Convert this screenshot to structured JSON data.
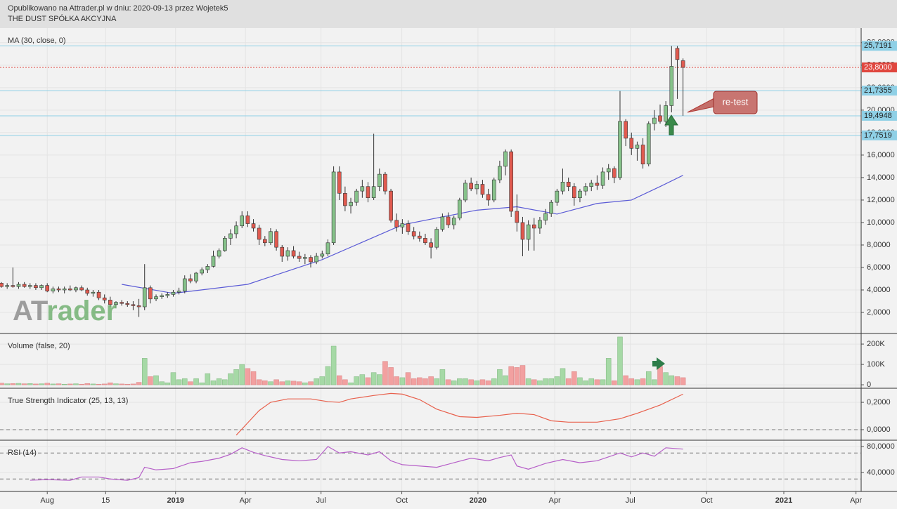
{
  "header": {
    "published": "Opublikowano na Attrader.pl w dniu: 2020-09-13 przez Wojetek5",
    "company": "THE DUST SPÓŁKA AKCYJNA"
  },
  "logo": [
    "AT",
    "rader"
  ],
  "chart_data": [
    {
      "type": "candlestick",
      "title": "MA (30, close, 0)",
      "up_color": "#86c28a",
      "down_color": "#e05a4f",
      "ohlc": [
        [
          4.6,
          4.7,
          4.2,
          4.3
        ],
        [
          4.3,
          4.6,
          4.1,
          4.4
        ],
        [
          4.4,
          6.0,
          4.2,
          4.3
        ],
        [
          4.3,
          4.7,
          4.1,
          4.5
        ],
        [
          4.5,
          4.7,
          4.2,
          4.3
        ],
        [
          4.3,
          4.6,
          4.1,
          4.4
        ],
        [
          4.4,
          4.6,
          4.0,
          4.2
        ],
        [
          4.2,
          4.5,
          4.0,
          4.4
        ],
        [
          4.4,
          4.6,
          3.8,
          3.9
        ],
        [
          3.9,
          4.3,
          3.7,
          4.1
        ],
        [
          4.1,
          4.3,
          3.8,
          4.0
        ],
        [
          4.0,
          4.3,
          3.7,
          4.1
        ],
        [
          4.1,
          4.4,
          3.9,
          4.0
        ],
        [
          4.0,
          4.3,
          3.8,
          4.2
        ],
        [
          4.2,
          4.4,
          3.9,
          4.0
        ],
        [
          4.0,
          4.2,
          3.5,
          3.7
        ],
        [
          3.7,
          4.0,
          3.4,
          3.8
        ],
        [
          3.8,
          4.0,
          3.1,
          3.3
        ],
        [
          3.3,
          3.6,
          2.8,
          3.1
        ],
        [
          3.1,
          3.4,
          2.5,
          2.7
        ],
        [
          2.7,
          3.0,
          2.4,
          2.9
        ],
        [
          2.9,
          3.1,
          2.6,
          2.8
        ],
        [
          2.8,
          3.0,
          2.5,
          2.7
        ],
        [
          2.7,
          3.0,
          2.2,
          2.6
        ],
        [
          2.6,
          3.2,
          1.6,
          2.5
        ],
        [
          2.5,
          6.3,
          2.2,
          4.2
        ],
        [
          4.2,
          4.4,
          2.8,
          3.2
        ],
        [
          3.2,
          3.6,
          3.0,
          3.4
        ],
        [
          3.4,
          3.7,
          3.2,
          3.5
        ],
        [
          3.5,
          3.8,
          3.3,
          3.6
        ],
        [
          3.6,
          4.0,
          3.4,
          3.8
        ],
        [
          3.8,
          4.2,
          3.6,
          3.9
        ],
        [
          3.9,
          5.3,
          3.7,
          5.0
        ],
        [
          5.0,
          5.4,
          4.6,
          4.8
        ],
        [
          4.8,
          5.6,
          4.6,
          5.5
        ],
        [
          5.5,
          6.0,
          5.3,
          5.8
        ],
        [
          5.8,
          6.3,
          5.5,
          6.1
        ],
        [
          6.1,
          7.5,
          6.0,
          7.0
        ],
        [
          7.0,
          7.7,
          6.8,
          7.5
        ],
        [
          7.5,
          8.8,
          7.4,
          8.6
        ],
        [
          8.6,
          9.4,
          8.0,
          9.0
        ],
        [
          9.0,
          10.1,
          8.6,
          9.7
        ],
        [
          9.7,
          11.0,
          9.5,
          10.6
        ],
        [
          10.6,
          11.0,
          9.6,
          9.9
        ],
        [
          9.9,
          10.3,
          9.2,
          9.5
        ],
        [
          9.5,
          9.8,
          8.0,
          8.5
        ],
        [
          8.5,
          8.8,
          7.9,
          8.2
        ],
        [
          8.2,
          9.5,
          8.0,
          9.2
        ],
        [
          9.2,
          9.4,
          7.5,
          7.8
        ],
        [
          7.8,
          8.0,
          6.5,
          7.0
        ],
        [
          7.0,
          7.8,
          6.6,
          7.5
        ],
        [
          7.5,
          7.9,
          6.8,
          7.0
        ],
        [
          7.0,
          7.4,
          6.5,
          6.8
        ],
        [
          6.8,
          7.2,
          6.3,
          6.9
        ],
        [
          6.9,
          7.1,
          6.0,
          6.5
        ],
        [
          6.5,
          7.3,
          6.3,
          7.0
        ],
        [
          7.0,
          7.5,
          6.8,
          7.2
        ],
        [
          7.2,
          8.5,
          7.0,
          8.2
        ],
        [
          8.2,
          15.0,
          8.0,
          14.5
        ],
        [
          14.5,
          15.0,
          12.0,
          12.6
        ],
        [
          12.6,
          13.2,
          11.0,
          11.5
        ],
        [
          11.5,
          12.2,
          10.8,
          11.8
        ],
        [
          11.8,
          13.0,
          11.5,
          12.8
        ],
        [
          12.8,
          13.8,
          12.2,
          13.2
        ],
        [
          13.2,
          13.6,
          11.8,
          12.2
        ],
        [
          12.2,
          17.9,
          12.0,
          13.2
        ],
        [
          13.2,
          14.8,
          12.8,
          14.3
        ],
        [
          14.3,
          14.5,
          12.5,
          12.8
        ],
        [
          12.8,
          13.0,
          10.0,
          10.2
        ],
        [
          10.2,
          10.8,
          9.2,
          9.6
        ],
        [
          9.6,
          10.3,
          9.0,
          9.9
        ],
        [
          9.9,
          10.2,
          8.9,
          9.2
        ],
        [
          9.2,
          9.6,
          8.5,
          8.8
        ],
        [
          8.8,
          9.2,
          8.3,
          8.6
        ],
        [
          8.6,
          9.0,
          8.0,
          8.2
        ],
        [
          8.2,
          8.6,
          6.8,
          7.8
        ],
        [
          7.8,
          9.6,
          7.6,
          9.4
        ],
        [
          9.4,
          10.8,
          9.2,
          10.5
        ],
        [
          10.5,
          10.9,
          9.5,
          9.8
        ],
        [
          9.8,
          10.6,
          9.4,
          10.4
        ],
        [
          10.4,
          12.2,
          10.2,
          12.0
        ],
        [
          12.0,
          13.8,
          11.8,
          13.5
        ],
        [
          13.5,
          14.0,
          12.8,
          13.0
        ],
        [
          13.0,
          13.7,
          12.5,
          13.4
        ],
        [
          13.4,
          13.8,
          12.2,
          12.5
        ],
        [
          12.5,
          13.0,
          11.5,
          12.0
        ],
        [
          12.0,
          14.0,
          11.8,
          13.8
        ],
        [
          13.8,
          15.5,
          13.5,
          15.0
        ],
        [
          15.0,
          16.5,
          14.2,
          16.3
        ],
        [
          16.3,
          16.5,
          10.5,
          11.0
        ],
        [
          11.0,
          12.5,
          9.2,
          10.0
        ],
        [
          10.0,
          10.5,
          7.0,
          8.5
        ],
        [
          8.5,
          10.2,
          7.5,
          9.8
        ],
        [
          9.8,
          10.4,
          7.5,
          9.5
        ],
        [
          9.5,
          10.5,
          9.0,
          10.2
        ],
        [
          10.2,
          11.2,
          9.8,
          10.8
        ],
        [
          10.8,
          12.0,
          10.5,
          11.8
        ],
        [
          11.8,
          13.0,
          11.5,
          12.8
        ],
        [
          12.8,
          14.8,
          12.5,
          13.6
        ],
        [
          13.6,
          14.0,
          12.8,
          13.2
        ],
        [
          13.2,
          13.5,
          11.5,
          12.2
        ],
        [
          12.2,
          13.0,
          11.8,
          12.8
        ],
        [
          12.8,
          13.5,
          12.4,
          13.2
        ],
        [
          13.2,
          13.8,
          12.8,
          13.5
        ],
        [
          13.5,
          14.2,
          12.9,
          13.3
        ],
        [
          13.3,
          14.9,
          13.0,
          14.5
        ],
        [
          14.5,
          15.2,
          13.8,
          14.8
        ],
        [
          14.8,
          15.0,
          13.5,
          14.0
        ],
        [
          14.0,
          21.7,
          13.8,
          19.0
        ],
        [
          19.0,
          19.2,
          16.8,
          17.5
        ],
        [
          17.5,
          18.0,
          16.0,
          16.6
        ],
        [
          16.6,
          17.2,
          15.5,
          16.9
        ],
        [
          16.9,
          17.5,
          14.8,
          15.2
        ],
        [
          15.2,
          19.0,
          15.0,
          18.8
        ],
        [
          18.8,
          20.0,
          18.2,
          19.3
        ],
        [
          19.5,
          20.5,
          18.8,
          19.0
        ],
        [
          19.0,
          20.8,
          18.5,
          20.4
        ],
        [
          20.4,
          25.7,
          19.8,
          23.9
        ],
        [
          25.5,
          25.7,
          21.0,
          24.5
        ],
        [
          24.4,
          24.6,
          19.5,
          23.8
        ]
      ],
      "ma": {
        "color": "#5b5bd6",
        "x": [
          21,
          30,
          43,
          56,
          70,
          83,
          90,
          97,
          104,
          110,
          115,
          119
        ],
        "values": [
          4.5,
          3.7,
          4.5,
          6.7,
          9.8,
          11.1,
          11.4,
          10.75,
          11.7,
          12.0,
          13.2,
          14.2
        ]
      },
      "levels": [
        {
          "value": 25.7191,
          "label": "25,7191",
          "color": "#8fd0e6",
          "text_color": "#222"
        },
        {
          "value": 23.8,
          "label": "23,8000",
          "color": "#e0463e",
          "text_color": "#ffffff",
          "dotted": true
        },
        {
          "value": 21.7355,
          "label": "21,7355",
          "color": "#8fd0e6",
          "text_color": "#222"
        },
        {
          "value": 19.4948,
          "label": "19,4948",
          "color": "#8fd0e6",
          "text_color": "#222"
        },
        {
          "value": 17.7519,
          "label": "17,7519",
          "color": "#8fd0e6",
          "text_color": "#222"
        }
      ],
      "annotation": "re-test",
      "ylim": [
        0.19,
        27.3
      ],
      "yticks": [
        {
          "value": 2,
          "label": "2,0000"
        },
        {
          "value": 4,
          "label": "4,0000"
        },
        {
          "value": 6,
          "label": "6,0000"
        },
        {
          "value": 8,
          "label": "8,0000"
        },
        {
          "value": 10,
          "label": "10,0000"
        },
        {
          "value": 12,
          "label": "12,0000"
        },
        {
          "value": 14,
          "label": "14,0000"
        },
        {
          "value": 16,
          "label": "16,0000"
        },
        {
          "value": 18,
          "label": "18,0000"
        },
        {
          "value": 20,
          "label": "20,0000"
        },
        {
          "value": 22,
          "label": "22,0000"
        },
        {
          "value": 24,
          "label": "24,0000"
        },
        {
          "value": 26,
          "label": "26,0000"
        }
      ]
    },
    {
      "type": "bar",
      "title": "Volume (false, 20)",
      "up_color": "#a6d9a6",
      "down_color": "#f2a0a0",
      "values": [
        8000,
        5000,
        6000,
        7000,
        5000,
        6000,
        4000,
        5000,
        8000,
        4000,
        5000,
        3000,
        4000,
        5000,
        3000,
        6000,
        4000,
        3000,
        4000,
        10000,
        5000,
        4000,
        3000,
        4000,
        12000,
        130000,
        40000,
        45000,
        15000,
        10000,
        60000,
        25000,
        30000,
        15000,
        30000,
        10000,
        55000,
        20000,
        30000,
        25000,
        55000,
        75000,
        100000,
        80000,
        65000,
        25000,
        20000,
        15000,
        25000,
        15000,
        20000,
        18000,
        15000,
        10000,
        15000,
        30000,
        40000,
        90000,
        190000,
        45000,
        25000,
        10000,
        40000,
        50000,
        35000,
        60000,
        50000,
        115000,
        85000,
        40000,
        35000,
        60000,
        30000,
        35000,
        30000,
        40000,
        30000,
        75000,
        25000,
        20000,
        30000,
        30000,
        25000,
        20000,
        25000,
        20000,
        30000,
        75000,
        45000,
        90000,
        85000,
        95000,
        30000,
        25000,
        20000,
        30000,
        30000,
        40000,
        80000,
        30000,
        65000,
        35000,
        20000,
        30000,
        25000,
        25000,
        130000,
        20000,
        235000,
        45000,
        30000,
        25000,
        30000,
        65000,
        25000,
        90000,
        60000,
        45000,
        40000,
        35000
      ],
      "ylim": [
        -17000,
        252000
      ],
      "yticks": [
        0,
        {
          "value": 100000,
          "label": "100K"
        },
        {
          "value": 200000,
          "label": "200K"
        }
      ]
    },
    {
      "type": "line",
      "title": "True Strength Indicator (25, 13, 13)",
      "color": "#e8604c",
      "x": [
        41,
        43,
        45,
        47,
        50,
        54,
        57,
        59,
        61,
        65,
        68,
        70,
        73,
        76,
        80,
        83,
        87,
        90,
        93,
        96,
        99,
        104,
        108,
        111,
        115,
        119
      ],
      "values": [
        -0.04,
        0.05,
        0.14,
        0.2,
        0.225,
        0.225,
        0.205,
        0.2,
        0.225,
        0.25,
        0.265,
        0.26,
        0.22,
        0.15,
        0.095,
        0.09,
        0.105,
        0.12,
        0.11,
        0.065,
        0.055,
        0.055,
        0.08,
        0.12,
        0.18,
        0.26
      ],
      "dashed_levels": [
        0
      ],
      "ylim": [
        -0.077,
        0.303
      ],
      "yticks": [
        {
          "value": 0,
          "label": "0,0000"
        },
        {
          "value": 0.2,
          "label": "0,2000"
        }
      ]
    },
    {
      "type": "line",
      "title": "RSI (14)",
      "color": "#b65fc8",
      "x": [
        5,
        8,
        12,
        14,
        17,
        19,
        22,
        24,
        25,
        27,
        30,
        33,
        35,
        38,
        40,
        42,
        44,
        46,
        49,
        52,
        55,
        57,
        59,
        61,
        64,
        66,
        68,
        70,
        73,
        76,
        79,
        82,
        85,
        87,
        89,
        90,
        92,
        95,
        98,
        101,
        104,
        108,
        110,
        112,
        114,
        116,
        119
      ],
      "values": [
        28,
        29,
        28,
        33,
        33,
        30,
        28,
        32,
        48,
        44,
        46,
        55,
        57,
        62,
        68,
        78,
        71,
        66,
        60,
        58,
        60,
        80,
        70,
        72,
        67,
        72,
        58,
        52,
        50,
        48,
        55,
        62,
        58,
        63,
        67,
        50,
        45,
        54,
        60,
        55,
        58,
        70,
        64,
        70,
        65,
        78,
        76
      ],
      "dashed_levels": [
        70,
        30
      ],
      "ylim": [
        10.8,
        89.7
      ],
      "yticks": [
        {
          "value": 40,
          "label": "40,0000"
        },
        {
          "value": 80,
          "label": "80,0000"
        }
      ],
      "xlim": [
        -0.25,
        150.1
      ],
      "xticks": [
        {
          "value": 8,
          "label": "Aug"
        },
        {
          "value": 18.2,
          "label": "15"
        },
        {
          "value": 30.4,
          "label": "2019"
        },
        {
          "value": 42.6,
          "label": "Apr"
        },
        {
          "value": 55.8,
          "label": "Jul"
        },
        {
          "value": 69.9,
          "label": "Oct"
        },
        {
          "value": 83.2,
          "label": "2020"
        },
        {
          "value": 96.6,
          "label": "Apr"
        },
        {
          "value": 109.8,
          "label": "Jul"
        },
        {
          "value": 123.1,
          "label": "Oct"
        },
        {
          "value": 136.6,
          "label": "2021"
        },
        {
          "value": 149.2,
          "label": "Apr"
        }
      ]
    }
  ]
}
